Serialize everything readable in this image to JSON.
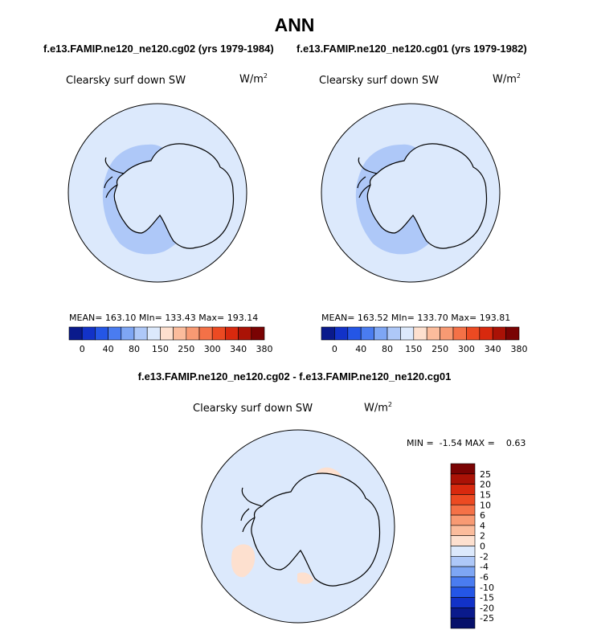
{
  "title": "ANN",
  "panels": [
    {
      "case_title": "f.e13.FAMIP.ne120_ne120.cg02 (yrs 1979-1984)",
      "variable": "Clearsky surf down SW",
      "units_base": "W/m",
      "units_exp": "2",
      "stats": "MEAN= 163.10  MIn= 133.43  Max= 193.14"
    },
    {
      "case_title": "f.e13.FAMIP.ne120_ne120.cg01 (yrs 1979-1982)",
      "variable": "Clearsky surf down SW",
      "units_base": "W/m",
      "units_exp": "2",
      "stats": "MEAN= 163.52  MIn= 133.70  Max= 193.81"
    }
  ],
  "diff_panel": {
    "title": "f.e13.FAMIP.ne120_ne120.cg02 - f.e13.FAMIP.ne120_ne120.cg01",
    "variable": "Clearsky surf down SW",
    "units_base": "W/m",
    "units_exp": "2",
    "minmax": "MIN =  -1.54 MAX =    0.63"
  },
  "colorbars": {
    "field_labels": [
      "0",
      "40",
      "80",
      "150",
      "250",
      "300",
      "340",
      "380"
    ],
    "field_colors": [
      "#0a1a8c",
      "#1232c8",
      "#2456e6",
      "#4a7cf0",
      "#7ea6f4",
      "#aec8f8",
      "#dce9fc",
      "#fde0cf",
      "#fbbc9c",
      "#f89a73",
      "#f47147",
      "#ec4a22",
      "#d8290e",
      "#aa1206",
      "#7a0303"
    ],
    "diff_labels": [
      "25",
      "20",
      "15",
      "10",
      "6",
      "4",
      "2",
      "0",
      "-2",
      "-4",
      "-6",
      "-10",
      "-15",
      "-20",
      "-25"
    ],
    "diff_colors": [
      "#7a0303",
      "#aa1206",
      "#d8290e",
      "#ec4a22",
      "#f47147",
      "#f89a73",
      "#fbbc9c",
      "#fde0cf",
      "#dce9fc",
      "#aec8f8",
      "#7ea6f4",
      "#4a7cf0",
      "#2456e6",
      "#1232c8",
      "#0a1a8c",
      "#06106a"
    ]
  },
  "chart_data": [
    {
      "type": "heatmap",
      "projection": "south-polar-stereographic",
      "title": "f.e13.FAMIP.ne120_ne120.cg02 (yrs 1979-1984)",
      "variable": "Clearsky surf down SW",
      "units": "W/m2",
      "mean": 163.1,
      "min": 133.43,
      "max": 193.14,
      "levels": [
        0,
        40,
        80,
        150,
        250,
        300,
        340,
        380
      ]
    },
    {
      "type": "heatmap",
      "projection": "south-polar-stereographic",
      "title": "f.e13.FAMIP.ne120_ne120.cg01 (yrs 1979-1982)",
      "variable": "Clearsky surf down SW",
      "units": "W/m2",
      "mean": 163.52,
      "min": 133.7,
      "max": 193.81,
      "levels": [
        0,
        40,
        80,
        150,
        250,
        300,
        340,
        380
      ]
    },
    {
      "type": "heatmap",
      "projection": "south-polar-stereographic",
      "title": "f.e13.FAMIP.ne120_ne120.cg02 - f.e13.FAMIP.ne120_ne120.cg01",
      "variable": "Clearsky surf down SW",
      "units": "W/m2",
      "min": -1.54,
      "max": 0.63,
      "levels": [
        -25,
        -20,
        -15,
        -10,
        -6,
        -4,
        -2,
        0,
        2,
        4,
        6,
        10,
        15,
        20,
        25
      ]
    }
  ]
}
